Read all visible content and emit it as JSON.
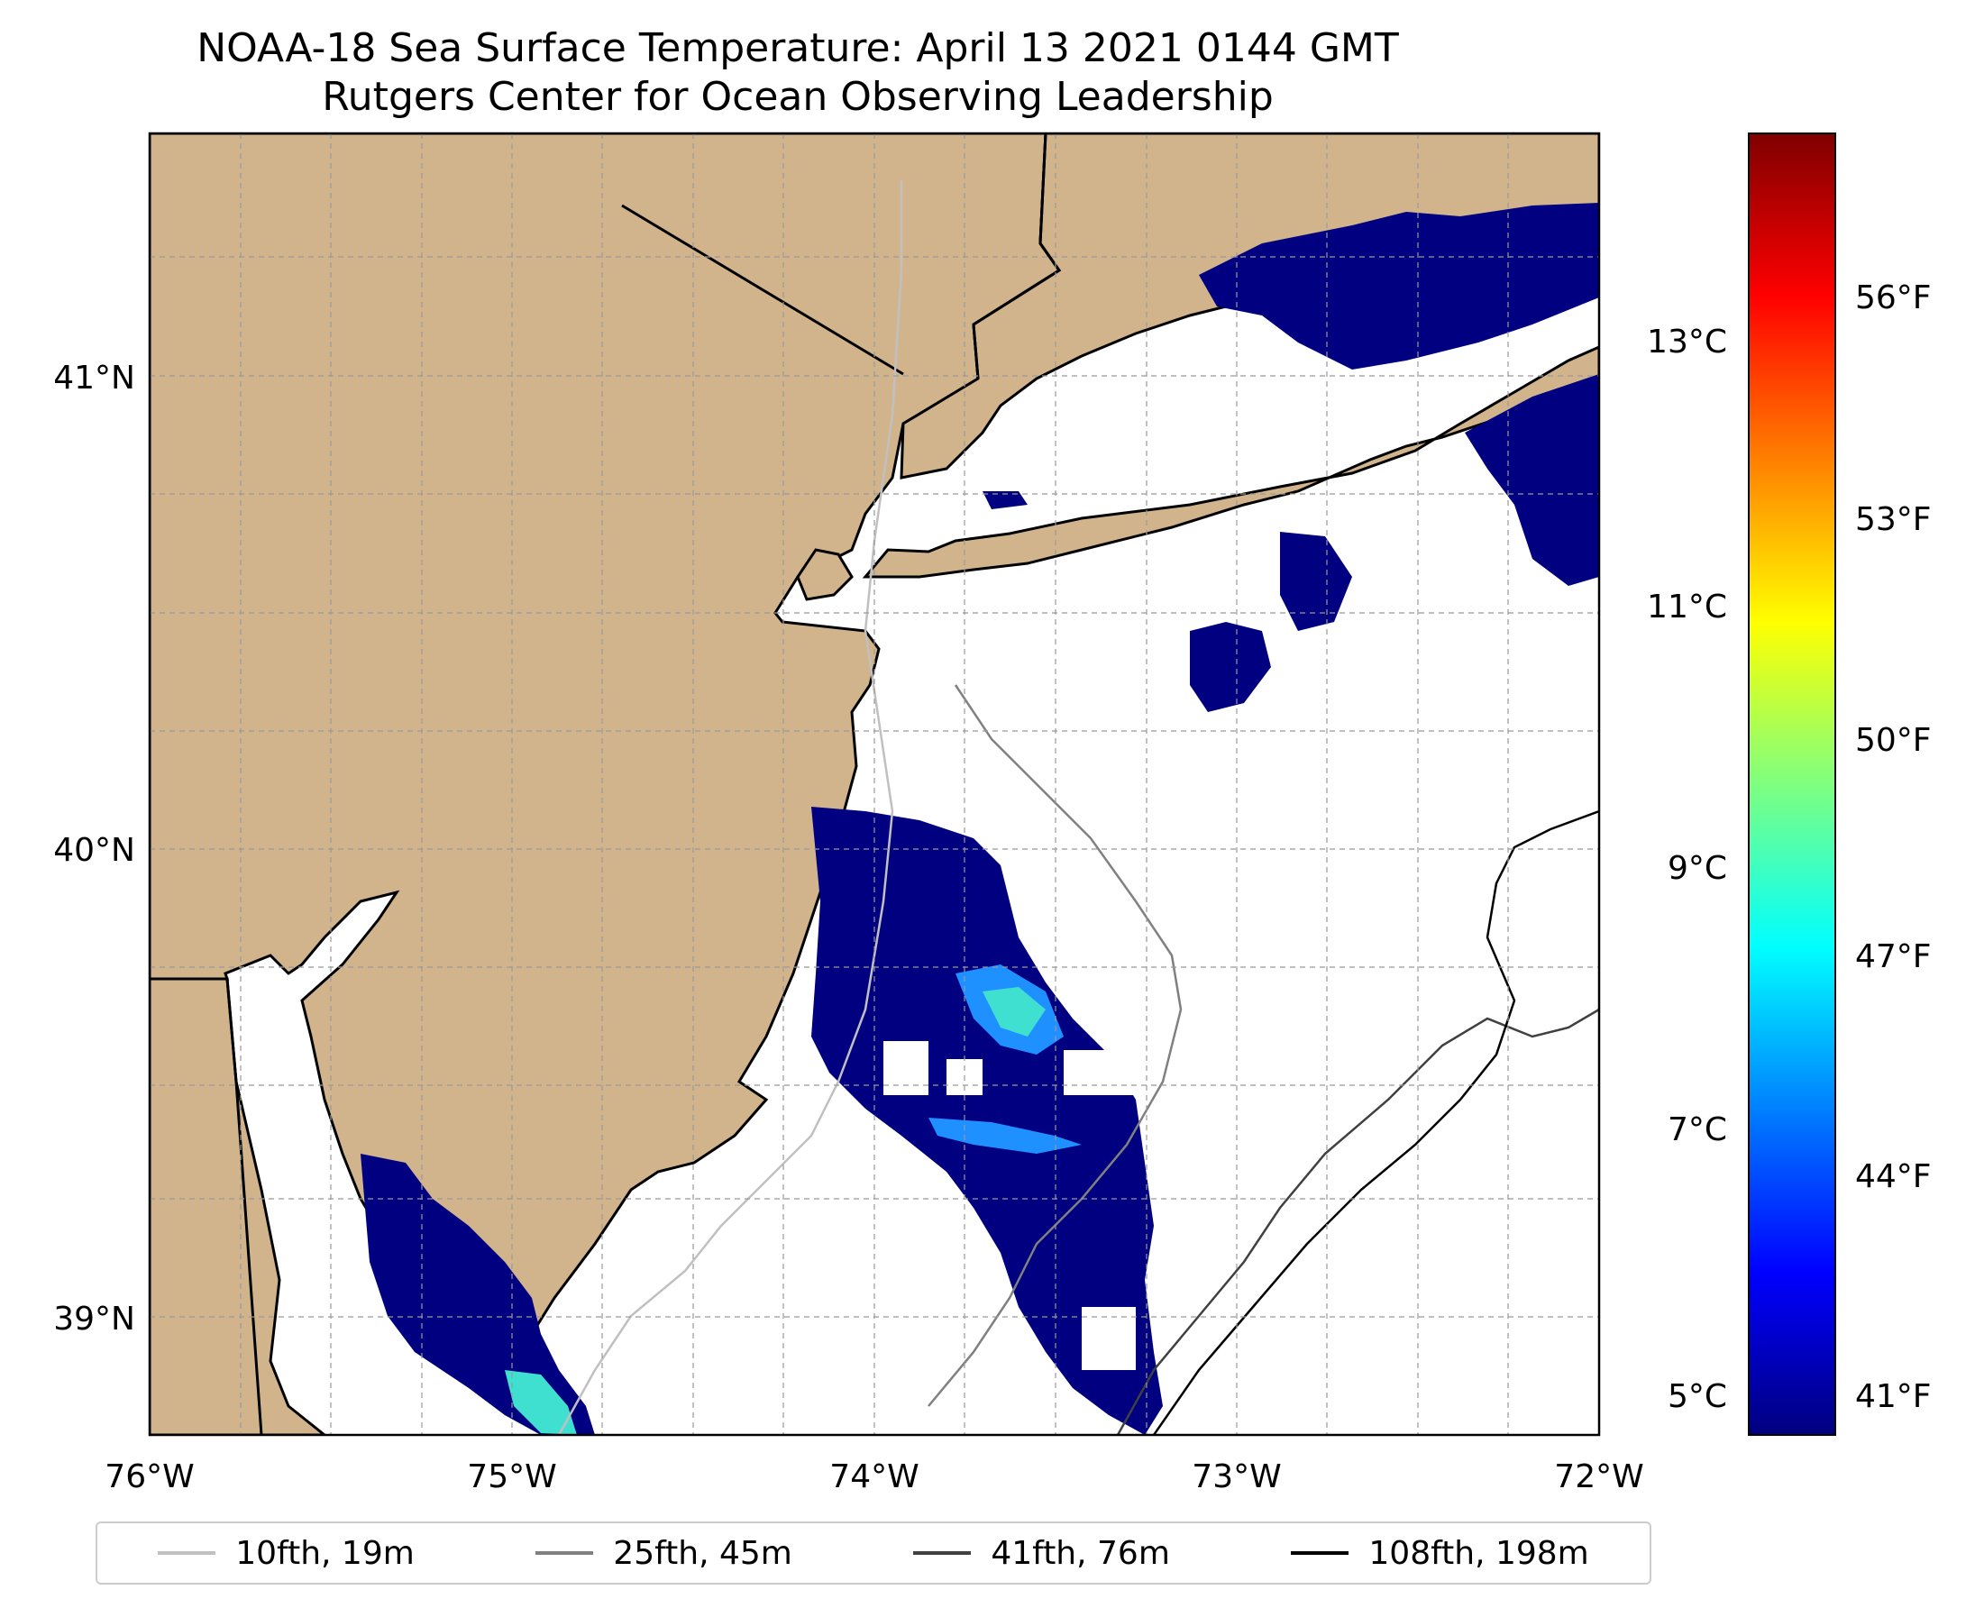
{
  "title": {
    "line1": "NOAA-18 Sea Surface Temperature: April 13 2021 0144 GMT",
    "line2": "Rutgers Center for Ocean Observing Leadership"
  },
  "map": {
    "lon_range": [
      -76,
      -72
    ],
    "lat_range": [
      38.75,
      41.55
    ],
    "lon_ticks": [
      "76°W",
      "75°W",
      "74°W",
      "73°W",
      "72°W"
    ],
    "lat_ticks": [
      "41°N",
      "40°N",
      "39°N"
    ],
    "gridlines": true,
    "land_color": "#d2b48c",
    "missing_data_color": "#ffffff",
    "dominant_sst_color": "#000080"
  },
  "colorbar": {
    "celsius_ticks": [
      "5°C",
      "7°C",
      "9°C",
      "11°C",
      "13°C"
    ],
    "fahrenheit_ticks": [
      "41°F",
      "44°F",
      "47°F",
      "50°F",
      "53°F",
      "56°F"
    ],
    "colormap": "jet",
    "colors": [
      "#00007f",
      "#0000ff",
      "#007fff",
      "#00ffff",
      "#7fff7f",
      "#ffff00",
      "#ff7f00",
      "#ff0000",
      "#7f0000"
    ]
  },
  "legend": {
    "items": [
      {
        "label": "10fth, 19m",
        "color": "#c0c0c0"
      },
      {
        "label": "25fth, 45m",
        "color": "#808080"
      },
      {
        "label": "41fth, 76m",
        "color": "#404040"
      },
      {
        "label": "108fth, 198m",
        "color": "#000000"
      }
    ]
  }
}
